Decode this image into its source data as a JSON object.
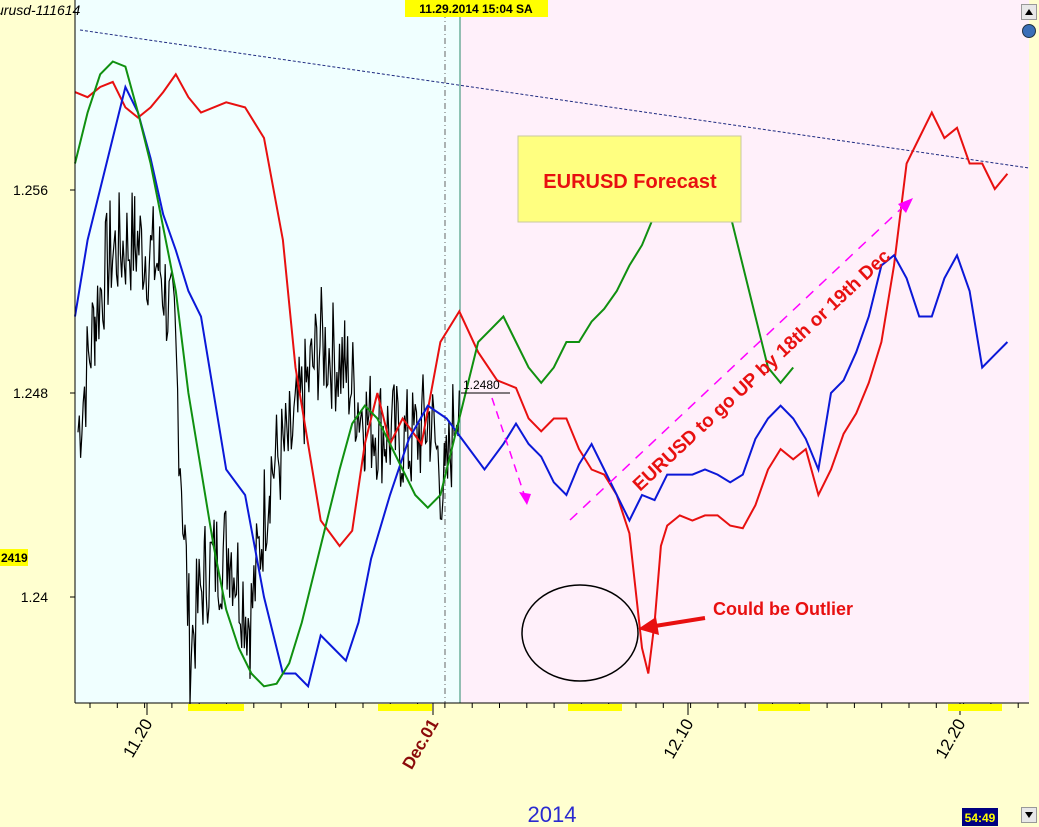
{
  "chart_data": {
    "type": "line",
    "symbol_label": "urusd-111614",
    "cursor_label": "11.29.2014  15:04 SA",
    "year_label": "2014",
    "clock_label": "54:49",
    "current_price_tag": "2419",
    "level_label": "1.2480",
    "y_ticks": [
      "1.256",
      "1.248",
      "1.24"
    ],
    "x_ticks": [
      "11.20",
      "Dec.01",
      "12.10",
      "12.20"
    ],
    "colors": {
      "price": "#000000",
      "red": "#e81010",
      "blue": "#0b18d8",
      "green": "#109010",
      "trendline": "#1e2a80",
      "arrow": "#ff00ff",
      "annotation": "#e81010",
      "history_bg": "#f0ffff",
      "forecast_bg": "#fff0fa",
      "page_bg": "#ffffd0",
      "highlight": "#ffff00"
    },
    "annotations": {
      "title_box": "EURUSD Forecast",
      "diagonal_text": "EURUSD to go UP by 18th or 19th Dec",
      "outlier_text": "Could be Outlier"
    },
    "series": [
      {
        "key": "red",
        "points": [
          [
            0,
            1.2598
          ],
          [
            2,
            1.2596
          ],
          [
            4,
            1.26
          ],
          [
            6,
            1.2602
          ],
          [
            8,
            1.2592
          ],
          [
            10,
            1.2588
          ],
          [
            12,
            1.2592
          ],
          [
            14,
            1.2598
          ],
          [
            16,
            1.2605
          ],
          [
            18,
            1.2596
          ],
          [
            20,
            1.259
          ],
          [
            24,
            1.2594
          ],
          [
            27,
            1.2592
          ],
          [
            30,
            1.258
          ],
          [
            33,
            1.254
          ],
          [
            35,
            1.249
          ],
          [
            37,
            1.246
          ],
          [
            39,
            1.243
          ],
          [
            42,
            1.242
          ],
          [
            44,
            1.2426
          ],
          [
            46,
            1.246
          ],
          [
            48,
            1.248
          ],
          [
            50,
            1.246
          ],
          [
            52,
            1.247
          ],
          [
            55,
            1.246
          ],
          [
            58,
            1.25
          ],
          [
            61,
            1.2512
          ],
          [
            64,
            1.2496
          ],
          [
            67,
            1.2485
          ],
          [
            70,
            1.2482
          ],
          [
            72,
            1.247
          ],
          [
            74,
            1.2465
          ],
          [
            76,
            1.247
          ],
          [
            78,
            1.247
          ],
          [
            80,
            1.2458
          ],
          [
            82,
            1.245
          ],
          [
            84,
            1.2448
          ],
          [
            86,
            1.244
          ],
          [
            88,
            1.2425
          ],
          [
            90,
            1.238
          ],
          [
            91,
            1.237
          ],
          [
            92,
            1.239
          ],
          [
            93,
            1.242
          ],
          [
            94,
            1.2428
          ],
          [
            96,
            1.2432
          ],
          [
            98,
            1.243
          ],
          [
            100,
            1.2432
          ],
          [
            102,
            1.2432
          ],
          [
            104,
            1.2428
          ],
          [
            106,
            1.2427
          ],
          [
            108,
            1.2436
          ],
          [
            110,
            1.245
          ],
          [
            112,
            1.2458
          ],
          [
            114,
            1.2454
          ],
          [
            116,
            1.2458
          ],
          [
            118,
            1.244
          ],
          [
            120,
            1.245
          ],
          [
            122,
            1.2464
          ],
          [
            124,
            1.2472
          ],
          [
            126,
            1.2484
          ],
          [
            128,
            1.25
          ],
          [
            130,
            1.253
          ],
          [
            132,
            1.257
          ],
          [
            134,
            1.258
          ],
          [
            136,
            1.259
          ],
          [
            138,
            1.258
          ],
          [
            140,
            1.2584
          ],
          [
            142,
            1.257
          ],
          [
            144,
            1.257
          ],
          [
            146,
            1.256
          ],
          [
            148,
            1.2566
          ]
        ]
      },
      {
        "key": "blue",
        "points": [
          [
            0,
            1.251
          ],
          [
            2,
            1.254
          ],
          [
            4,
            1.256
          ],
          [
            6,
            1.258
          ],
          [
            8,
            1.26
          ],
          [
            10,
            1.259
          ],
          [
            12,
            1.2572
          ],
          [
            14,
            1.255
          ],
          [
            16,
            1.2536
          ],
          [
            18,
            1.252
          ],
          [
            20,
            1.251
          ],
          [
            22,
            1.248
          ],
          [
            24,
            1.245
          ],
          [
            27,
            1.244
          ],
          [
            30,
            1.24
          ],
          [
            33,
            1.237
          ],
          [
            35,
            1.237
          ],
          [
            37,
            1.2365
          ],
          [
            39,
            1.2385
          ],
          [
            41,
            1.238
          ],
          [
            43,
            1.2375
          ],
          [
            45,
            1.239
          ],
          [
            47,
            1.2415
          ],
          [
            50,
            1.244
          ],
          [
            53,
            1.2462
          ],
          [
            56,
            1.2475
          ],
          [
            59,
            1.247
          ],
          [
            62,
            1.246
          ],
          [
            65,
            1.245
          ],
          [
            68,
            1.246
          ],
          [
            70,
            1.2468
          ],
          [
            72,
            1.246
          ],
          [
            74,
            1.2455
          ],
          [
            76,
            1.2445
          ],
          [
            78,
            1.244
          ],
          [
            80,
            1.2452
          ],
          [
            82,
            1.246
          ],
          [
            84,
            1.245
          ],
          [
            86,
            1.244
          ],
          [
            88,
            1.243
          ],
          [
            90,
            1.244
          ],
          [
            92,
            1.2438
          ],
          [
            94,
            1.2448
          ],
          [
            96,
            1.2448
          ],
          [
            98,
            1.2448
          ],
          [
            100,
            1.245
          ],
          [
            102,
            1.2448
          ],
          [
            104,
            1.2445
          ],
          [
            106,
            1.2448
          ],
          [
            108,
            1.2462
          ],
          [
            110,
            1.247
          ],
          [
            112,
            1.2475
          ],
          [
            114,
            1.247
          ],
          [
            116,
            1.2462
          ],
          [
            118,
            1.245
          ],
          [
            120,
            1.248
          ],
          [
            122,
            1.2485
          ],
          [
            124,
            1.2496
          ],
          [
            126,
            1.251
          ],
          [
            128,
            1.253
          ],
          [
            130,
            1.2534
          ],
          [
            132,
            1.2525
          ],
          [
            134,
            1.251
          ],
          [
            136,
            1.251
          ],
          [
            138,
            1.2525
          ],
          [
            140,
            1.2534
          ],
          [
            142,
            1.252
          ],
          [
            144,
            1.249
          ],
          [
            146,
            1.2495
          ],
          [
            148,
            1.25
          ]
        ]
      },
      {
        "key": "green",
        "points": [
          [
            0,
            1.257
          ],
          [
            2,
            1.259
          ],
          [
            4,
            1.2605
          ],
          [
            6,
            1.261
          ],
          [
            8,
            1.2608
          ],
          [
            10,
            1.259
          ],
          [
            12,
            1.257
          ],
          [
            14,
            1.2545
          ],
          [
            16,
            1.252
          ],
          [
            18,
            1.248
          ],
          [
            20,
            1.245
          ],
          [
            22,
            1.242
          ],
          [
            24,
            1.2395
          ],
          [
            26,
            1.238
          ],
          [
            28,
            1.237
          ],
          [
            30,
            1.2365
          ],
          [
            32,
            1.2366
          ],
          [
            34,
            1.2374
          ],
          [
            36,
            1.239
          ],
          [
            38,
            1.241
          ],
          [
            40,
            1.243
          ],
          [
            42,
            1.245
          ],
          [
            44,
            1.2468
          ],
          [
            46,
            1.2475
          ],
          [
            48,
            1.247
          ],
          [
            50,
            1.246
          ],
          [
            52,
            1.245
          ],
          [
            54,
            1.244
          ],
          [
            56,
            1.2435
          ],
          [
            58,
            1.244
          ],
          [
            60,
            1.246
          ],
          [
            62,
            1.248
          ],
          [
            64,
            1.25
          ],
          [
            66,
            1.2505
          ],
          [
            68,
            1.251
          ],
          [
            70,
            1.25
          ],
          [
            72,
            1.249
          ],
          [
            74,
            1.2484
          ],
          [
            76,
            1.249
          ],
          [
            78,
            1.25
          ],
          [
            80,
            1.25
          ],
          [
            82,
            1.2508
          ],
          [
            84,
            1.2513
          ],
          [
            86,
            1.252
          ],
          [
            88,
            1.253
          ],
          [
            90,
            1.2538
          ],
          [
            92,
            1.255
          ],
          [
            94,
            1.2558
          ],
          [
            96,
            1.2565
          ],
          [
            98,
            1.2568
          ],
          [
            100,
            1.2572
          ],
          [
            102,
            1.2566
          ],
          [
            104,
            1.255
          ],
          [
            106,
            1.253
          ],
          [
            108,
            1.251
          ],
          [
            110,
            1.249
          ],
          [
            112,
            1.2484
          ],
          [
            114,
            1.249
          ]
        ]
      }
    ]
  }
}
